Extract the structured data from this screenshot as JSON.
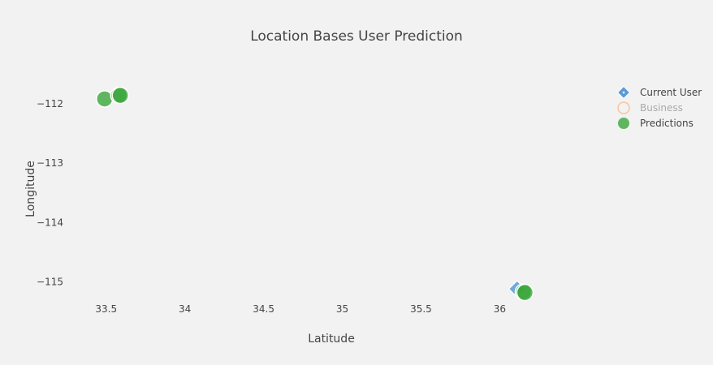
{
  "chart_data": {
    "type": "scatter",
    "title": "Location Bases User Prediction",
    "xlabel": "Latitude",
    "ylabel": "Longitude",
    "xlim": [
      33.3,
      36.55
    ],
    "ylim": [
      -115.28,
      -111.62
    ],
    "xticks": [
      33.5,
      34,
      34.5,
      35,
      35.5,
      36
    ],
    "xtick_labels": [
      "33.5",
      "34",
      "34.5",
      "35",
      "35.5",
      "36"
    ],
    "yticks": [
      -112,
      -113,
      -114,
      -115
    ],
    "ytick_labels": [
      "−112",
      "−113",
      "−114",
      "−115"
    ],
    "grid": false,
    "legend_position": "top-right",
    "series": [
      {
        "name": "Current User",
        "marker": "diamond",
        "color": "#5b9bd5",
        "visible": true,
        "x": [
          36.11
        ],
        "y": [
          -115.12
        ]
      },
      {
        "name": "Business",
        "marker": "circle-open",
        "color": "#f7c6a0",
        "visible": false,
        "x": [],
        "y": []
      },
      {
        "name": "Predictions",
        "marker": "circle",
        "color": "#3aa63a",
        "visible": true,
        "x": [
          33.49,
          33.58,
          33.59,
          36.15,
          36.16
        ],
        "y": [
          -111.92,
          -111.86,
          -111.86,
          -115.17,
          -115.18
        ]
      }
    ]
  }
}
